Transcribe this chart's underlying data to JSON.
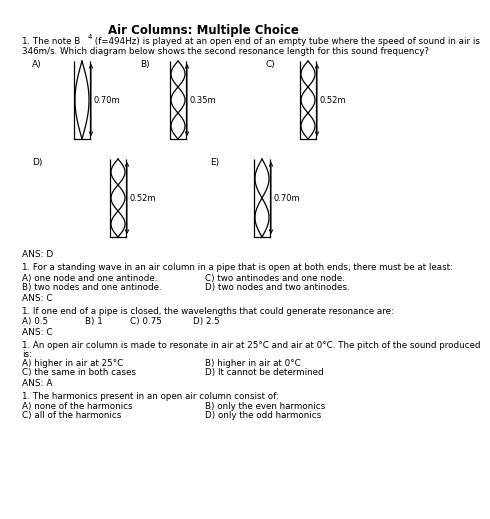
{
  "title": "Air Columns: Multiple Choice",
  "background_color": "#ffffff",
  "q1_text1": "1. The note B",
  "q1_sub": "4",
  "q1_text2": " (f=494Hz) is played at an open end of an empty tube where the speed of sound in air is",
  "q1_text3": "346m/s. Which diagram below shows the second resonance length for this sound frequency?",
  "ans1": "ANS: D",
  "q2_text": "1. For a standing wave in an air column in a pipe that is open at both ends, there must be at least:",
  "q2a": "A) one node and one antinode.",
  "q2c": "C) two antinodes and one node.",
  "q2b": "B) two nodes and one antinode.",
  "q2d": "D) two nodes and two antinodes.",
  "ans2": "ANS: C",
  "q3_text": "1. If one end of a pipe is closed, the wavelengths that could generate resonance are:",
  "q3a": "A) 0.5",
  "q3b": "B) 1",
  "q3c": "C) 0.75",
  "q3d": "D) 2.5",
  "ans3": "ANS: C",
  "q4_text1": "1. An open air column is made to resonate in air at 25°C and air at 0°C. The pitch of the sound produced",
  "q4_text2": "is:",
  "q4a": "A) higher in air at 25°C",
  "q4b": "B) higher in air at 0°C",
  "q4c": "C) the same in both cases",
  "q4d": "D) It cannot be determined",
  "ans4": "ANS: A",
  "q5_text": "1. The harmonics present in an open air column consist of:",
  "q5a": "A) none of the harmonics",
  "q5b": "B) only the even harmonics",
  "q5c": "C) all of the harmonics",
  "q5d": "D) only the odd harmonics"
}
